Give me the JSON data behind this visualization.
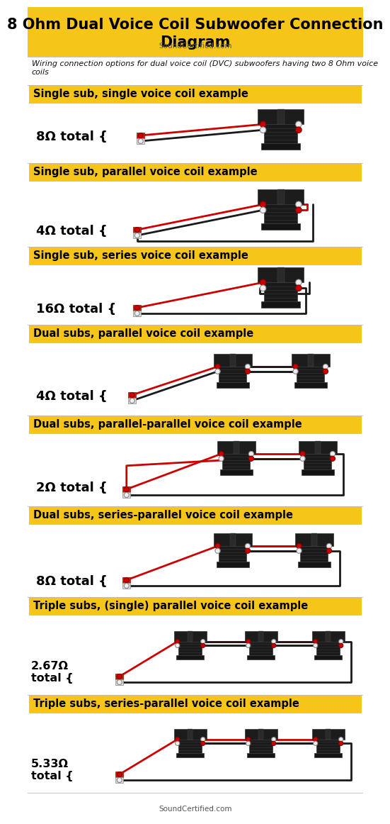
{
  "title": "8 Ohm Dual Voice Coil Subwoofer Connection\nDiagram",
  "subtitle": "SoundCertified.com",
  "description": "Wiring connection options for dual voice coil (DVC) subwoofers having two 8 Ohm voice\ncoils",
  "header_bg": "#F5C519",
  "section_bg": "#F5C519",
  "white_bg": "#FFFFFF",
  "sections": [
    {
      "label": "Single sub, single voice coil example",
      "impedance": "8Ω total {",
      "num_subs": 1
    },
    {
      "label": "Single sub, parallel voice coil example",
      "impedance": "4Ω total {",
      "num_subs": 1
    },
    {
      "label": "Single sub, series voice coil example",
      "impedance": "16Ω total {",
      "num_subs": 1
    },
    {
      "label": "Dual subs, parallel voice coil example",
      "impedance": "4Ω total {",
      "num_subs": 2
    },
    {
      "label": "Dual subs, parallel-parallel voice coil example",
      "impedance": "2Ω total {",
      "num_subs": 2
    },
    {
      "label": "Dual subs, series-parallel voice coil example",
      "impedance": "8Ω total {",
      "num_subs": 2
    },
    {
      "label": "Triple subs, (single) parallel voice coil example",
      "impedance": "2.67Ω\ntotal {",
      "num_subs": 3
    },
    {
      "label": "Triple subs, series-parallel voice coil example",
      "impedance": "5.33Ω\ntotal {",
      "num_subs": 3
    }
  ],
  "red_wire": "#CC0000",
  "black_wire": "#1a1a1a",
  "title_fontsize": 15,
  "label_fontsize": 10.5,
  "footer": "SoundCertified.com"
}
